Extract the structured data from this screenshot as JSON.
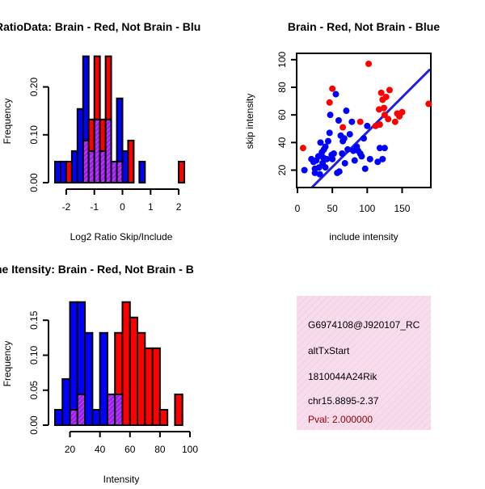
{
  "colors": {
    "red": "#ff0000",
    "blue": "#0000ff",
    "purple": "#a020f0",
    "line": "#2020e0",
    "infobg": "#f7dcec",
    "pval": "#8b0000"
  },
  "chart_data": [
    {
      "type": "bar",
      "title": "RatioData: Brain - Red, Not Brain - Blu",
      "xlabel": "Log2 Ratio Skip/Include",
      "ylabel": "Frequency",
      "xlim": [
        -2.4,
        2.4
      ],
      "ylim": [
        0,
        0.26
      ],
      "xticks": [
        "-2",
        "-1",
        "0",
        "1",
        "2"
      ],
      "yticks": [
        "0.00",
        "0.10",
        "0.20"
      ],
      "bin_starts": [
        -2.4,
        -2.2,
        -2.0,
        -1.8,
        -1.6,
        -1.4,
        -1.2,
        -1.0,
        -0.8,
        -0.6,
        -0.4,
        -0.2,
        0.0,
        0.2,
        0.4,
        0.6,
        0.8,
        1.0,
        1.2,
        1.4,
        1.6,
        1.8,
        2.0,
        2.2
      ],
      "bin_width": 0.2,
      "series": [
        {
          "name": "Brain",
          "color": "red",
          "values": [
            0,
            0,
            0.044,
            0,
            0,
            0.088,
            0.132,
            0.264,
            0.132,
            0.264,
            0.044,
            0.044,
            0,
            0.088,
            0,
            0,
            0,
            0,
            0,
            0,
            0,
            0,
            0.044,
            0
          ]
        },
        {
          "name": "Not Brain",
          "color": "blue",
          "values": [
            0.044,
            0.044,
            0,
            0.066,
            0.154,
            0.264,
            0.066,
            0.132,
            0.066,
            0.132,
            0.044,
            0.176,
            0.066,
            0,
            0,
            0.044,
            0,
            0,
            0,
            0,
            0,
            0,
            0,
            0
          ]
        }
      ]
    },
    {
      "type": "scatter",
      "title": "Brain - Red, Not Brain - Blue",
      "xlabel": "include intensity",
      "ylabel": "skip intensity",
      "xlim": [
        0,
        190
      ],
      "ylim": [
        8,
        104
      ],
      "xticks": [
        0,
        50,
        100,
        150
      ],
      "yticks": [
        20,
        40,
        60,
        80,
        100
      ],
      "regression": {
        "x1": 0,
        "y1": -3,
        "x2": 190,
        "y2": 93
      },
      "series": [
        {
          "name": "Brain",
          "color": "red",
          "points": [
            [
              8,
              36
            ],
            [
              46,
              69
            ],
            [
              50,
              79
            ],
            [
              65,
              51
            ],
            [
              90,
              55
            ],
            [
              102,
              97
            ],
            [
              112,
              52
            ],
            [
              117,
              64
            ],
            [
              118,
              53
            ],
            [
              120,
              76
            ],
            [
              122,
              71
            ],
            [
              124,
              65
            ],
            [
              125,
              60
            ],
            [
              127,
              73
            ],
            [
              130,
              57
            ],
            [
              132,
              78
            ],
            [
              140,
              55
            ],
            [
              143,
              61
            ],
            [
              146,
              59
            ],
            [
              150,
              62
            ],
            [
              188,
              68
            ]
          ]
        },
        {
          "name": "Not Brain",
          "color": "blue",
          "points": [
            [
              10,
              20
            ],
            [
              20,
              28
            ],
            [
              23,
              26
            ],
            [
              25,
              18
            ],
            [
              25,
              21
            ],
            [
              27,
              27
            ],
            [
              30,
              30
            ],
            [
              31,
              22
            ],
            [
              32,
              17
            ],
            [
              33,
              40
            ],
            [
              35,
              33
            ],
            [
              36,
              25
            ],
            [
              37,
              29
            ],
            [
              38,
              35
            ],
            [
              40,
              22
            ],
            [
              40,
              37
            ],
            [
              42,
              28
            ],
            [
              44,
              41
            ],
            [
              46,
              47
            ],
            [
              47,
              60
            ],
            [
              49,
              31
            ],
            [
              50,
              28
            ],
            [
              52,
              32
            ],
            [
              55,
              75
            ],
            [
              57,
              18
            ],
            [
              59,
              56
            ],
            [
              60,
              19
            ],
            [
              62,
              45
            ],
            [
              64,
              32
            ],
            [
              65,
              41
            ],
            [
              67,
              43
            ],
            [
              68,
              25
            ],
            [
              70,
              63
            ],
            [
              72,
              35
            ],
            [
              75,
              46
            ],
            [
              78,
              55
            ],
            [
              80,
              34
            ],
            [
              82,
              27
            ],
            [
              85,
              37
            ],
            [
              87,
              34
            ],
            [
              90,
              32
            ],
            [
              92,
              30
            ],
            [
              95,
              43
            ],
            [
              97,
              21
            ],
            [
              100,
              52
            ],
            [
              104,
              28
            ],
            [
              115,
              26
            ],
            [
              118,
              36
            ],
            [
              122,
              28
            ],
            [
              125,
              36
            ]
          ]
        }
      ]
    },
    {
      "type": "bar",
      "title": "ne Itensity: Brain - Red, Not Brain - B",
      "xlabel": "Intensity",
      "ylabel": "Frequency",
      "xlim": [
        10,
        100
      ],
      "ylim": [
        0,
        0.178
      ],
      "xticks": [
        "20",
        "40",
        "60",
        "80",
        "100"
      ],
      "yticks": [
        "0.00",
        "0.05",
        "0.10",
        "0.15"
      ],
      "bin_starts": [
        10,
        15,
        20,
        25,
        30,
        35,
        40,
        45,
        50,
        55,
        60,
        65,
        70,
        75,
        80,
        85,
        90,
        95
      ],
      "bin_width": 5,
      "series": [
        {
          "name": "Brain",
          "color": "red",
          "values": [
            0,
            0,
            0.022,
            0.044,
            0,
            0,
            0,
            0.044,
            0.132,
            0.176,
            0.154,
            0.132,
            0.11,
            0.11,
            0.022,
            0,
            0.044,
            0
          ]
        },
        {
          "name": "Not Brain",
          "color": "blue",
          "values": [
            0.022,
            0.066,
            0.176,
            0.176,
            0.132,
            0.022,
            0.132,
            0.044,
            0.044,
            0,
            0,
            0,
            0,
            0,
            0,
            0,
            0,
            0
          ]
        }
      ]
    }
  ],
  "info_panel": {
    "line1": "G6974108@J920107_RC",
    "line2": "altTxStart",
    "line3": "1810044A24Rik",
    "line4": "chr15.8895-2.37",
    "pval": "Pval: 2.000000"
  }
}
